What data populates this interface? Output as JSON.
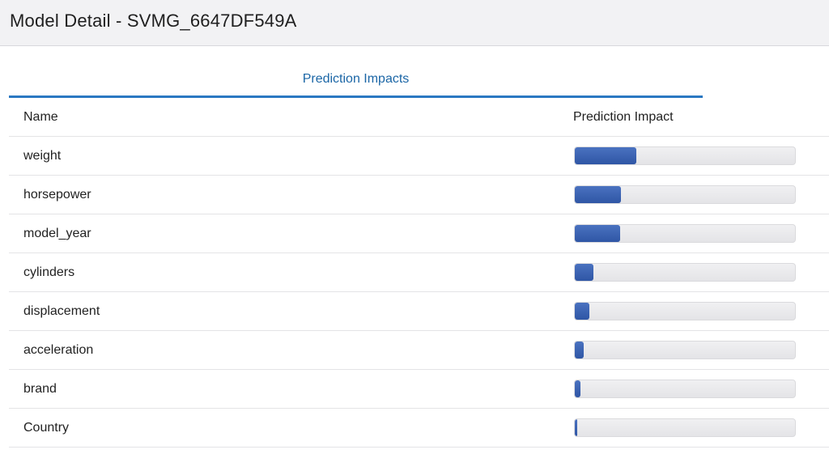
{
  "header": {
    "title": "Model Detail - SVMG_6647DF549A"
  },
  "tabs": [
    {
      "label": "Prediction Impacts",
      "active": true
    }
  ],
  "table": {
    "columns": [
      "Name",
      "Prediction Impact"
    ],
    "rows": [
      {
        "name": "weight",
        "impact": 0.28
      },
      {
        "name": "horsepower",
        "impact": 0.21
      },
      {
        "name": "model_year",
        "impact": 0.205
      },
      {
        "name": "cylinders",
        "impact": 0.085
      },
      {
        "name": "displacement",
        "impact": 0.065
      },
      {
        "name": "acceleration",
        "impact": 0.04
      },
      {
        "name": "brand",
        "impact": 0.025
      },
      {
        "name": "Country",
        "impact": 0.012
      }
    ]
  },
  "colors": {
    "accent": "#2a78c2",
    "tab_text": "#1b66a6",
    "bar_fill": "#3a60ae",
    "bar_track": "#e8e8eb"
  }
}
